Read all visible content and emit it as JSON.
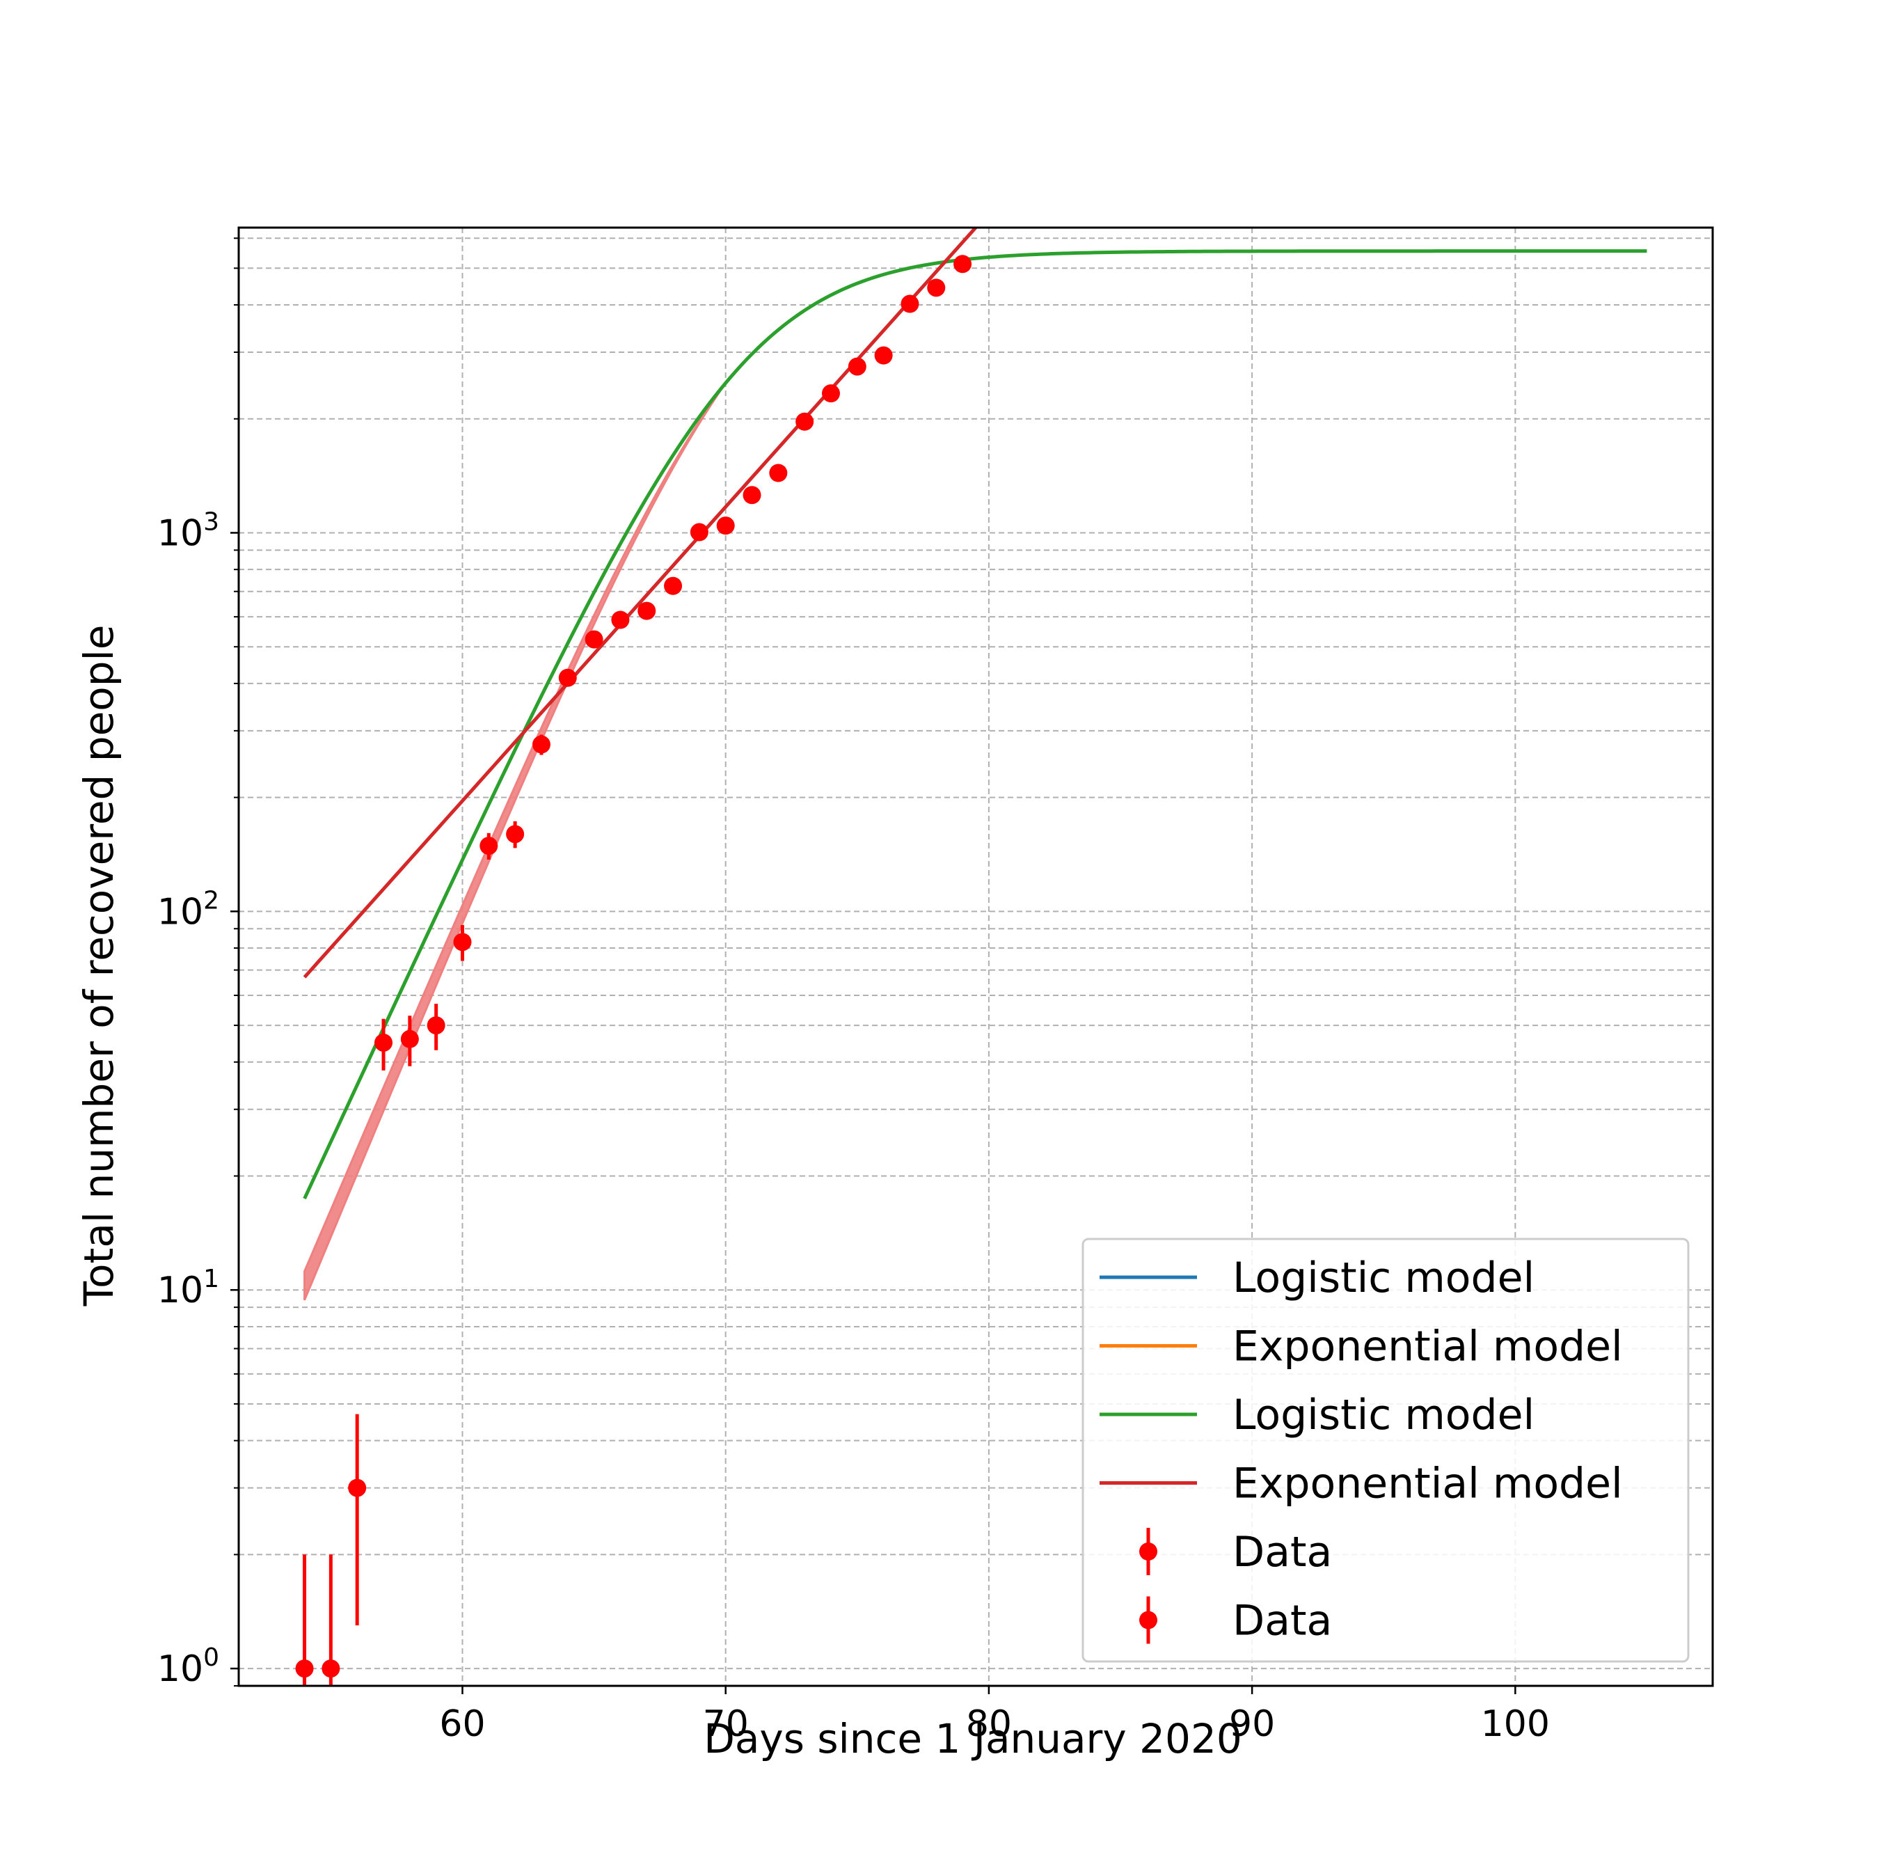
{
  "chart_data": {
    "type": "scatter",
    "xlabel": "Days since 1 January 2020",
    "ylabel": "Total number of recovered people",
    "xlim": [
      51.5,
      107.5
    ],
    "ylim": [
      0.9,
      6400
    ],
    "yscale": "log",
    "grid": true,
    "legend_position": "bottom-right",
    "x_ticks": [
      60,
      70,
      80,
      90,
      100
    ],
    "y_ticks": [
      {
        "value": 1,
        "base": "10",
        "exp": "0"
      },
      {
        "value": 10,
        "base": "10",
        "exp": "1"
      },
      {
        "value": 100,
        "base": "10",
        "exp": "2"
      },
      {
        "value": 1000,
        "base": "10",
        "exp": "3"
      }
    ],
    "colors": {
      "blue": "#1f77b4",
      "orange": "#ff7f0e",
      "green": "#2ca02c",
      "red": "#d62728",
      "data": "#ff0000",
      "band": "#f08080"
    },
    "legend": [
      {
        "label": "Logistic model",
        "color": "#1f77b4",
        "kind": "line"
      },
      {
        "label": "Exponential model",
        "color": "#ff7f0e",
        "kind": "line"
      },
      {
        "label": "Logistic model",
        "color": "#2ca02c",
        "kind": "line"
      },
      {
        "label": "Exponential model",
        "color": "#d62728",
        "kind": "line"
      },
      {
        "label": "Data",
        "color": "#ff0000",
        "kind": "marker"
      },
      {
        "label": "Data",
        "color": "#ff0000",
        "kind": "marker"
      }
    ],
    "series": [
      {
        "kind": "logistic",
        "color": "#2ca02c",
        "x_range": [
          54,
          105
        ],
        "params": {
          "c": 5550,
          "a": 0.347,
          "b": 70.6
        }
      },
      {
        "kind": "exponential",
        "color": "#d62728",
        "x_range": [
          54,
          80.6
        ],
        "params": {
          "A": 67,
          "r": 0.1788,
          "x0": 54
        }
      },
      {
        "kind": "band",
        "color": "#f08080",
        "x_range": [
          54,
          70
        ],
        "params": {
          "start_low": 9.4,
          "start_high": 11.2,
          "c": 5550,
          "a": 0.347,
          "b": 70.6
        }
      },
      {
        "kind": "data",
        "color": "#ff0000",
        "points": [
          {
            "x": 54,
            "y": 1,
            "err_low": 0.05,
            "err_high": 2
          },
          {
            "x": 55,
            "y": 1,
            "err_low": 0.05,
            "err_high": 2
          },
          {
            "x": 56,
            "y": 3,
            "err_low": 1.3,
            "err_high": 4.7
          },
          {
            "x": 57,
            "y": 45,
            "err_low": 38,
            "err_high": 52
          },
          {
            "x": 58,
            "y": 46,
            "err_low": 39,
            "err_high": 53
          },
          {
            "x": 59,
            "y": 50,
            "err_low": 43,
            "err_high": 57
          },
          {
            "x": 60,
            "y": 83,
            "err_low": 74,
            "err_high": 92
          },
          {
            "x": 61,
            "y": 149,
            "err_low": 137,
            "err_high": 161
          },
          {
            "x": 62,
            "y": 160,
            "err_low": 147,
            "err_high": 173
          },
          {
            "x": 63,
            "y": 276,
            "err_low": 259,
            "err_high": 293
          },
          {
            "x": 64,
            "y": 414,
            "err_low": 394,
            "err_high": 434
          },
          {
            "x": 65,
            "y": 523,
            "err_low": 500,
            "err_high": 546
          },
          {
            "x": 66,
            "y": 589,
            "err_low": 565,
            "err_high": 613
          },
          {
            "x": 67,
            "y": 622,
            "err_low": 597,
            "err_high": 647
          },
          {
            "x": 68,
            "y": 724,
            "err_low": 697,
            "err_high": 751
          },
          {
            "x": 69,
            "y": 1004,
            "err_low": 972,
            "err_high": 1036
          },
          {
            "x": 70,
            "y": 1045,
            "err_low": 1013,
            "err_high": 1077
          },
          {
            "x": 71,
            "y": 1258,
            "err_low": 1223,
            "err_high": 1293
          },
          {
            "x": 72,
            "y": 1439,
            "err_low": 1401,
            "err_high": 1477
          },
          {
            "x": 73,
            "y": 1966,
            "err_low": 1922,
            "err_high": 2010
          },
          {
            "x": 74,
            "y": 2335,
            "err_low": 2287,
            "err_high": 2383
          },
          {
            "x": 75,
            "y": 2749,
            "err_low": 2697,
            "err_high": 2801
          },
          {
            "x": 76,
            "y": 2941,
            "err_low": 2887,
            "err_high": 2995
          },
          {
            "x": 77,
            "y": 4025,
            "err_low": 3962,
            "err_high": 4088
          },
          {
            "x": 78,
            "y": 4440,
            "err_low": 4373,
            "err_high": 4507
          },
          {
            "x": 79,
            "y": 5129,
            "err_low": 5057,
            "err_high": 5201
          }
        ]
      }
    ]
  }
}
